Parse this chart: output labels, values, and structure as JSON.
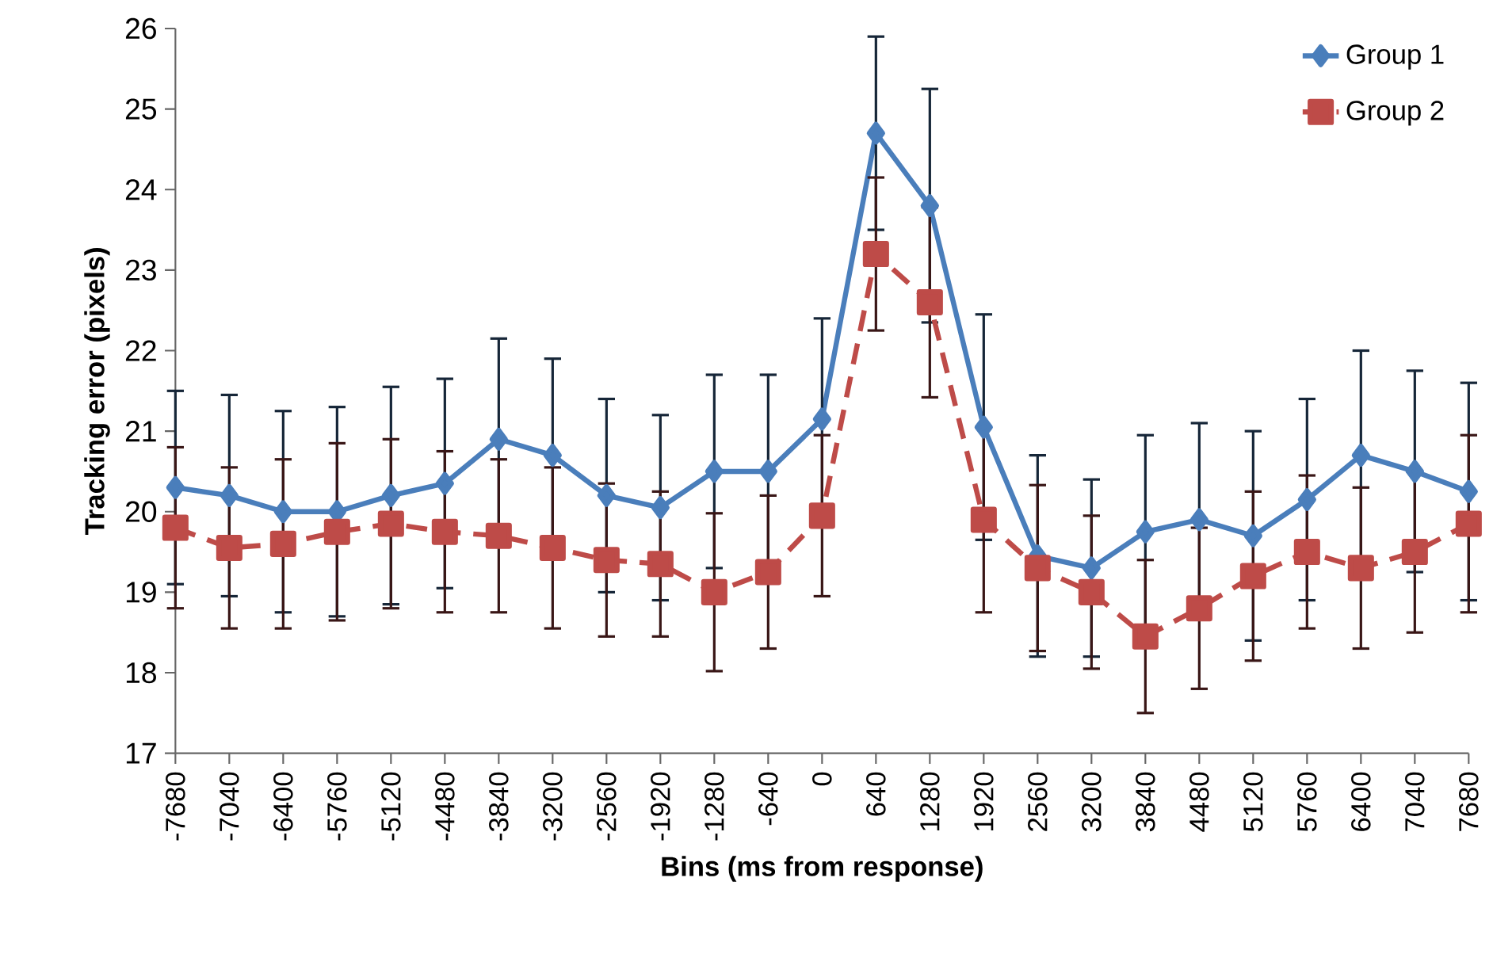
{
  "chart_data": {
    "type": "line",
    "xlabel": "Bins (ms from response)",
    "ylabel": "Tracking error (pixels)",
    "categories": [
      "-7680",
      "-7040",
      "-6400",
      "-5760",
      "-5120",
      "-4480",
      "-3840",
      "-3200",
      "-2560",
      "-1920",
      "-1280",
      "-640",
      "0",
      "640",
      "1280",
      "1920",
      "2560",
      "3200",
      "3840",
      "4480",
      "5120",
      "5760",
      "6400",
      "7040",
      "7680"
    ],
    "ylim": [
      17,
      26
    ],
    "yticks": [
      17,
      18,
      19,
      20,
      21,
      22,
      23,
      24,
      25,
      26
    ],
    "grid": false,
    "legend": "top right",
    "series": [
      {
        "name": "Group 1",
        "color": "#4a7ebb",
        "marker": "diamond",
        "line_style": "solid",
        "values": [
          20.3,
          20.2,
          20.0,
          20.0,
          20.2,
          20.35,
          20.9,
          20.7,
          20.2,
          20.05,
          20.5,
          20.5,
          21.15,
          24.7,
          23.8,
          21.05,
          19.45,
          19.3,
          19.75,
          19.9,
          19.7,
          20.15,
          20.7,
          20.5,
          20.25
        ],
        "errors": [
          1.2,
          1.25,
          1.25,
          1.3,
          1.35,
          1.3,
          1.25,
          1.2,
          1.2,
          1.15,
          1.2,
          1.2,
          1.25,
          1.2,
          1.45,
          1.4,
          1.25,
          1.1,
          1.2,
          1.2,
          1.3,
          1.25,
          1.3,
          1.25,
          1.35
        ]
      },
      {
        "name": "Group 2",
        "color": "#be4b48",
        "marker": "square",
        "line_style": "dashed",
        "values": [
          19.8,
          19.55,
          19.6,
          19.75,
          19.85,
          19.75,
          19.7,
          19.55,
          19.4,
          19.35,
          19.0,
          19.25,
          19.95,
          23.2,
          22.6,
          19.9,
          19.3,
          19.0,
          18.45,
          18.8,
          19.2,
          19.5,
          19.3,
          19.5,
          19.85
        ],
        "errors": [
          1.0,
          1.0,
          1.05,
          1.1,
          1.05,
          1.0,
          0.95,
          1.0,
          0.95,
          0.9,
          0.98,
          0.95,
          1.0,
          0.95,
          1.18,
          1.15,
          1.03,
          0.95,
          0.95,
          1.0,
          1.05,
          0.95,
          1.0,
          1.0,
          1.1
        ]
      }
    ]
  }
}
